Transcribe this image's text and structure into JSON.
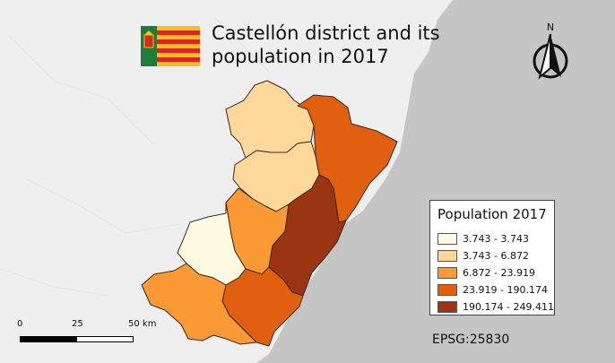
{
  "map": {
    "title_line1": "Castellón district and its",
    "title_line2": "population in 2017",
    "north_label": "N",
    "crs_label": "EPSG:25830"
  },
  "legend": {
    "title": "Population 2017",
    "classes": [
      {
        "label": "3.743 - 3.743",
        "color": "#fffbe3"
      },
      {
        "label": "3.743 - 6.872",
        "color": "#fdd89a"
      },
      {
        "label": "6.872 - 23.919",
        "color": "#fb9a34"
      },
      {
        "label": "23.919 - 190.174",
        "color": "#e1600f"
      },
      {
        "label": "190.174 - 249.411",
        "color": "#9b3410"
      }
    ]
  },
  "scale_bar": {
    "tick_0": "0",
    "tick_25": "25",
    "tick_50": "50 km"
  },
  "colors": {
    "sea": "#c5c5c5",
    "land": "#efefef",
    "district_border": "#3a2a1e"
  },
  "icons": {
    "flag": "valencian-community-flag-icon",
    "north_arrow": "north-arrow-icon"
  }
}
